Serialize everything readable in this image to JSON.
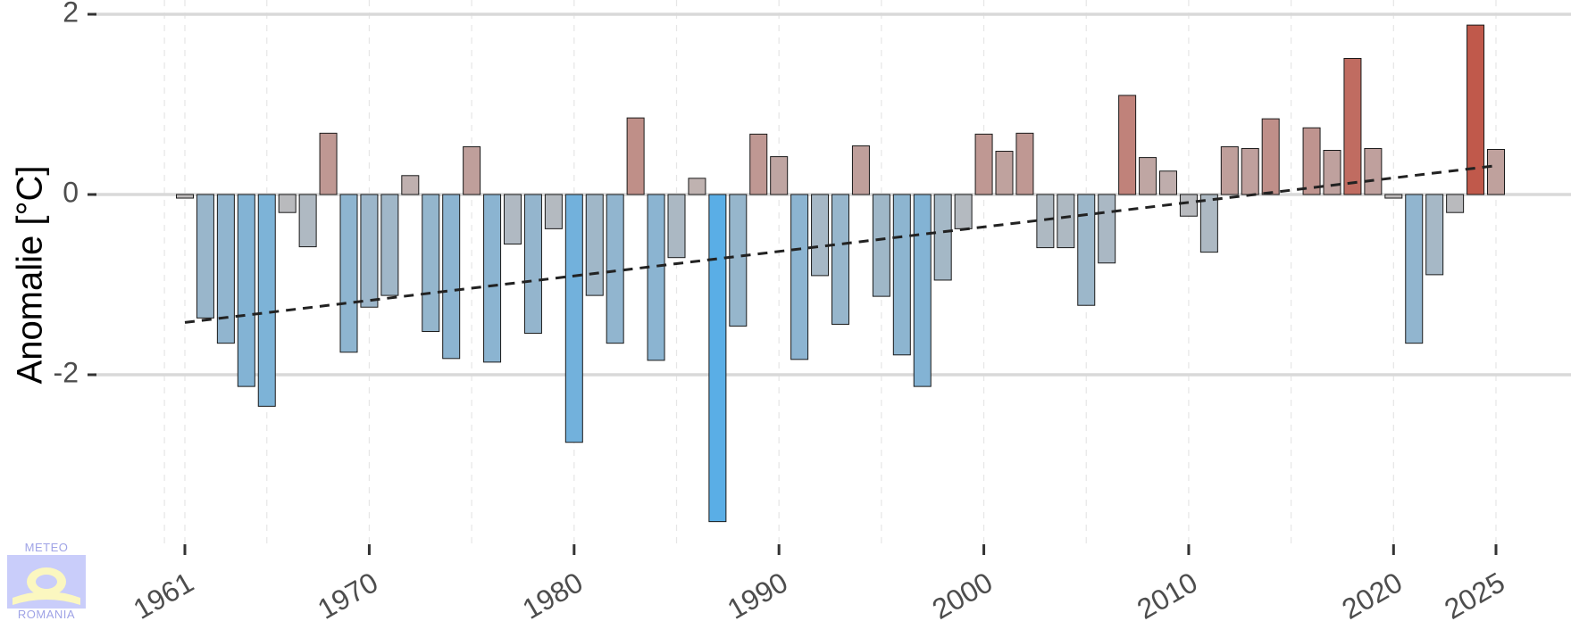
{
  "logo": {
    "top": "METEO",
    "bottom": "ROMANIA",
    "colors": {
      "box": "#c9cdfa",
      "emblem": "#fbf7c0",
      "text": "#9fa3e6"
    }
  },
  "chart_data": {
    "type": "bar",
    "ylabel": "Anomalie [°C]",
    "xlabel": "",
    "title": "",
    "ylim": [
      -3.7,
      2.0
    ],
    "xlim": [
      1959,
      2026
    ],
    "yticks": [
      2,
      0,
      -2
    ],
    "ytick_labels": [
      "2",
      "0",
      "-2"
    ],
    "xticks": [
      1961,
      1970,
      1980,
      1990,
      2000,
      2010,
      2020,
      2025
    ],
    "xtick_labels": [
      "1961",
      "1970",
      "1980",
      "1990",
      "2000",
      "2010",
      "2020",
      "2025"
    ],
    "grid": true,
    "colors": {
      "cold": "#5aaee6",
      "neutral": "#bfbbbb",
      "warm": "#c0584a",
      "bar_edge": "#1a1a1a",
      "trend": "#222222",
      "grid_major": "#d9d9d9",
      "grid_minor": "#e6e6e6"
    },
    "x": [
      1961,
      1962,
      1963,
      1964,
      1965,
      1966,
      1967,
      1968,
      1969,
      1970,
      1971,
      1972,
      1973,
      1974,
      1975,
      1976,
      1977,
      1978,
      1979,
      1980,
      1981,
      1982,
      1983,
      1984,
      1985,
      1986,
      1987,
      1988,
      1989,
      1990,
      1991,
      1992,
      1993,
      1994,
      1995,
      1996,
      1997,
      1998,
      1999,
      2000,
      2001,
      2002,
      2003,
      2004,
      2005,
      2006,
      2007,
      2008,
      2009,
      2010,
      2011,
      2012,
      2013,
      2014,
      2015,
      2016,
      2017,
      2018,
      2019,
      2020,
      2021,
      2022,
      2023,
      2024,
      2025
    ],
    "values": [
      -0.04,
      -1.37,
      -1.65,
      -2.13,
      -2.35,
      -0.2,
      -0.58,
      0.68,
      -1.75,
      -1.25,
      -1.12,
      0.21,
      -1.52,
      -1.82,
      0.53,
      -1.86,
      -0.55,
      -1.54,
      -0.38,
      -2.75,
      -1.12,
      -1.65,
      0.85,
      -1.84,
      -0.7,
      0.18,
      -3.63,
      -1.46,
      0.67,
      0.42,
      -1.83,
      -0.9,
      -1.44,
      0.54,
      -1.13,
      -1.78,
      -2.13,
      -0.95,
      -0.38,
      0.67,
      0.48,
      0.68,
      -0.59,
      -0.59,
      -1.23,
      -0.76,
      1.1,
      0.41,
      0.26,
      -0.24,
      -0.64,
      0.53,
      0.51,
      0.84,
      0.0,
      0.74,
      0.49,
      1.51,
      0.51,
      -0.04,
      -1.65,
      -0.89,
      -0.2,
      1.88,
      0.5
    ],
    "trend": {
      "x": [
        1961,
        2025
      ],
      "y": [
        -1.42,
        0.32
      ],
      "style": "dashed"
    }
  }
}
